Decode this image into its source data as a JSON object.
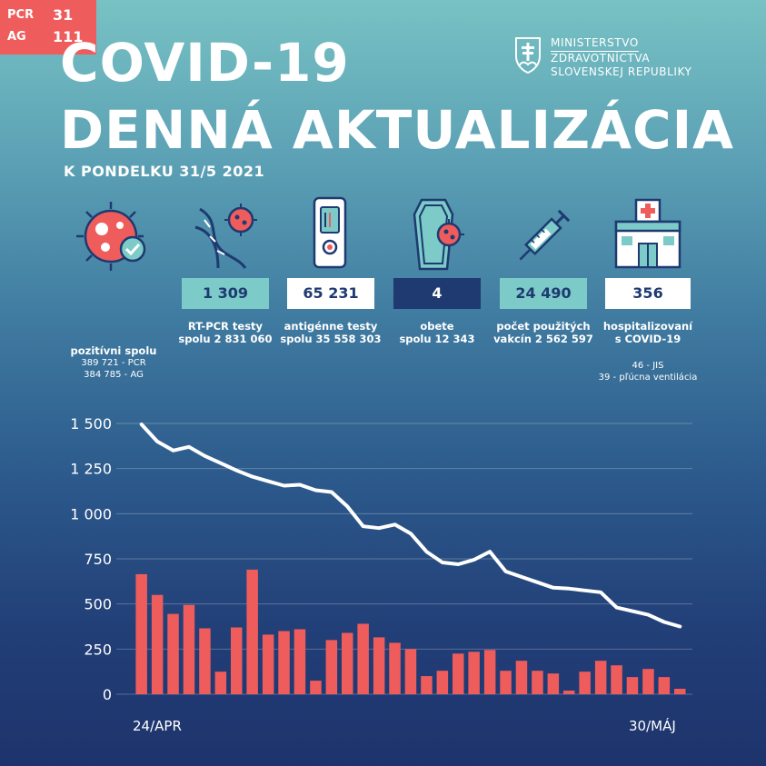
{
  "header": {
    "title_line1": "COVID-19",
    "title_line2": "DENNÁ AKTUALIZÁCIA",
    "subtitle": "K PONDELKU 31/5 2021",
    "ministry_line1": "MINISTERSTVO",
    "ministry_line2": "ZDRAVOTNÍCTVA",
    "ministry_line3": "SLOVENSKEJ REPUBLIKY"
  },
  "stats": {
    "positive": {
      "pcr_label": "PCR",
      "pcr_value": "31",
      "ag_label": "AG",
      "ag_value": "111",
      "label": "pozitívni spolu",
      "sub1": "389 721 - PCR",
      "sub2": "384 785 - AG",
      "color": "#ef5c5c"
    },
    "rtpcr": {
      "value": "1 309",
      "label1": "RT-PCR testy",
      "label2": "spolu 2 831 060",
      "color": "#7ccbc8"
    },
    "antigen": {
      "value": "65 231",
      "label1": "antigénne testy",
      "label2": "spolu 35 558 303",
      "color": "#ffffff"
    },
    "deaths": {
      "value": "4",
      "label1": "obete",
      "label2": "spolu 12 343",
      "color": "#1e3a70"
    },
    "vaccines": {
      "value": "24 490",
      "label1": "počet použitých",
      "label2": "vakcín 2 562 597",
      "color": "#7ccbc8"
    },
    "hospital": {
      "value": "356",
      "label1": "hospitalizovaní",
      "label2": "s COVID-19",
      "sub1": "46 - JIS",
      "sub2": "39 - pľúcna ventilácia",
      "color": "#ffffff"
    }
  },
  "icons": [
    "virus-check-icon",
    "dna-virus-icon",
    "antigen-test-icon",
    "coffin-virus-icon",
    "syringe-icon",
    "hospital-icon"
  ],
  "chart_data": {
    "type": "bar",
    "x_start_label": "24/APR",
    "x_end_label": "30/MÁJ",
    "ylim": [
      0,
      1500
    ],
    "yticks": [
      "1 500",
      "1 250",
      "1 000",
      "750",
      "500",
      "250",
      "0"
    ],
    "ytick_values": [
      1500,
      1250,
      1000,
      750,
      500,
      250,
      0
    ],
    "bar_color": "#ef5c5c",
    "line_color": "#ffffff",
    "series": [
      {
        "kind": "bar",
        "values": [
          665,
          550,
          445,
          495,
          365,
          125,
          370,
          690,
          330,
          350,
          360,
          75,
          300,
          340,
          390,
          315,
          285,
          250,
          100,
          130,
          225,
          235,
          245,
          130,
          185,
          130,
          115,
          20,
          125,
          185,
          160,
          95,
          140,
          95,
          30
        ]
      },
      {
        "kind": "line",
        "values": [
          1495,
          1400,
          1350,
          1370,
          1320,
          1280,
          1240,
          1205,
          1180,
          1155,
          1160,
          1130,
          1120,
          1040,
          930,
          920,
          940,
          890,
          790,
          730,
          720,
          745,
          790,
          680,
          650,
          620,
          590,
          585,
          575,
          565,
          480,
          460,
          440,
          400,
          375
        ]
      }
    ]
  }
}
